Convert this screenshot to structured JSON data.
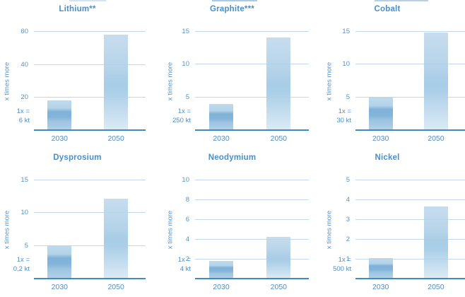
{
  "figure": {
    "y_axis_label": "x times more",
    "x_categories": [
      "2030",
      "2050"
    ]
  },
  "colors": {
    "text_blue": "#4a8fc9",
    "tick_blue": "#5394cb",
    "gridline": "#cfe0ef",
    "axis_line": "#4189c3",
    "bar_2030_dark_band": "#80b1d8",
    "bar_2030_light": "#bfdaed",
    "bar_2050_top": "#c7ddee",
    "bar_2050_bottom": "#dcebf5"
  },
  "chart_data": [
    {
      "type": "bar",
      "title": "Lithium**",
      "categories": [
        "2030",
        "2050"
      ],
      "values": [
        18,
        58
      ],
      "yticks": [
        20,
        40,
        60
      ],
      "ylim": [
        0,
        62.5
      ],
      "ylabel": "x times more",
      "grid": true,
      "annotation": [
        "1x =",
        "6 kt"
      ]
    },
    {
      "type": "bar",
      "title": "Graphite***",
      "categories": [
        "2030",
        "2050"
      ],
      "values": [
        4,
        14
      ],
      "yticks": [
        5,
        10,
        15
      ],
      "ylim": [
        0,
        15.6
      ],
      "ylabel": "x times more",
      "grid": true,
      "annotation": [
        "1x =",
        "250 kt"
      ]
    },
    {
      "type": "bar",
      "title": "Cobalt",
      "categories": [
        "2030",
        "2050"
      ],
      "values": [
        5,
        14.7
      ],
      "yticks": [
        5,
        10,
        15
      ],
      "ylim": [
        0,
        15.6
      ],
      "ylabel": "x times more",
      "grid": true,
      "annotation": [
        "1x =",
        "30 kt"
      ]
    },
    {
      "type": "bar",
      "title": "Dysprosium",
      "categories": [
        "2030",
        "2050"
      ],
      "values": [
        5,
        12.1
      ],
      "yticks": [
        5,
        10,
        15
      ],
      "ylim": [
        0,
        15.6
      ],
      "ylabel": "x times more",
      "grid": true,
      "annotation": [
        "1x =",
        "0,2 kt"
      ]
    },
    {
      "type": "bar",
      "title": "Neodymium",
      "categories": [
        "2030",
        "2050"
      ],
      "values": [
        1.75,
        4.2
      ],
      "yticks": [
        2,
        4,
        6,
        8,
        10
      ],
      "ylim": [
        0,
        10.4
      ],
      "ylabel": "x times more",
      "grid": true,
      "annotation": [
        "1x =",
        "4 kt"
      ]
    },
    {
      "type": "bar",
      "title": "Nickel",
      "categories": [
        "2030",
        "2050"
      ],
      "values": [
        1.05,
        3.65
      ],
      "yticks": [
        1,
        2,
        3,
        4,
        5
      ],
      "ylim": [
        0,
        5.2
      ],
      "ylabel": "x times more",
      "grid": true,
      "annotation": [
        "1x =",
        "500 kt"
      ]
    }
  ]
}
